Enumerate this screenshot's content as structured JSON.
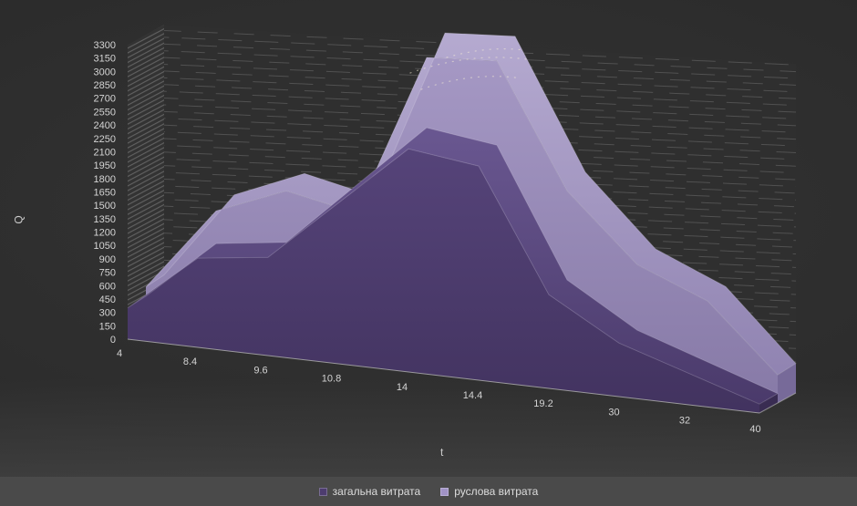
{
  "chart_data": {
    "type": "area",
    "projection": "3d",
    "title": "",
    "xlabel": "t",
    "ylabel": "Q",
    "ylim": [
      0,
      3300
    ],
    "ytick_step": 150,
    "grid": "minor-gridlines-on-walls",
    "legend_position": "bottom",
    "categories": [
      "4",
      "8.4",
      "9.6",
      "10.8",
      "14",
      "14.4",
      "19.2",
      "30",
      "32",
      "40"
    ],
    "series": [
      {
        "name": "загальна витрата",
        "values": [
          350,
          1000,
          1100,
          1800,
          2500,
          2400,
          1050,
          600,
          350,
          100
        ],
        "swatch_color": "#4d3c6f",
        "top_color_hi": "#75629f",
        "top_color_lo": "#483868",
        "front_color_hi": "#5f4c86",
        "front_color_lo": "#41325e",
        "side_color": "#392c52"
      },
      {
        "name": "руслова витрата",
        "values": [
          450,
          1350,
          1650,
          1500,
          3250,
          3300,
          2000,
          1300,
          1000,
          300
        ],
        "swatch_color": "#a193c6",
        "top_color_hi": "#b6abd1",
        "top_color_lo": "#8b7ead",
        "front_color_hi": "#a89bc7",
        "front_color_lo": "#8578a5",
        "side_color": "#776a99"
      }
    ]
  },
  "colors": {
    "background": "#2c2c2c",
    "legend_bar": "#4a4a4a",
    "axis_text": "#d4d4d4",
    "wall_hatch": "#8f8f8f",
    "floor_edge": "#a8a8a8"
  }
}
